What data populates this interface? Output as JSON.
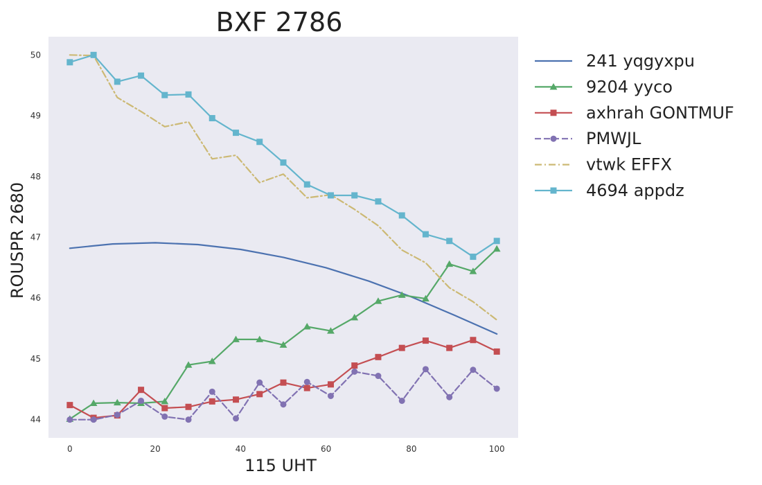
{
  "chart_data": {
    "type": "line",
    "title": "BXF 2786",
    "xlabel": "115 UHT",
    "ylabel": "ROUSPR 2680",
    "xlim": [
      -5,
      105
    ],
    "ylim": [
      43.7,
      50.3
    ],
    "xticks": [
      0,
      20,
      40,
      60,
      80,
      100
    ],
    "yticks": [
      44,
      45,
      46,
      47,
      48,
      49,
      50
    ],
    "grid": false,
    "legend_position": "outside right",
    "series": [
      {
        "name": "241 yqgyxpu",
        "color": "#4c72b0",
        "style": "solid",
        "marker": "none",
        "x": [
          0,
          10,
          20,
          30,
          40,
          50,
          60,
          70,
          80,
          90,
          100
        ],
        "y": [
          46.82,
          46.89,
          46.91,
          46.88,
          46.8,
          46.67,
          46.5,
          46.28,
          46.02,
          45.72,
          45.41
        ]
      },
      {
        "name": "9204 yyco",
        "color": "#55a868",
        "style": "solid",
        "marker": "triangle",
        "x": [
          0,
          5.56,
          11.11,
          16.67,
          22.22,
          27.78,
          33.33,
          38.89,
          44.44,
          50,
          55.56,
          61.11,
          66.67,
          72.22,
          77.78,
          83.33,
          88.89,
          94.44,
          100
        ],
        "y": [
          44.01,
          44.27,
          44.28,
          44.27,
          44.3,
          44.9,
          44.96,
          45.32,
          45.32,
          45.23,
          45.53,
          45.46,
          45.68,
          45.95,
          46.05,
          45.99,
          46.56,
          46.44,
          46.81
        ]
      },
      {
        "name": "axhrah GONTMUF",
        "color": "#c44e52",
        "style": "solid",
        "marker": "square",
        "x": [
          0,
          5.56,
          11.11,
          16.67,
          22.22,
          27.78,
          33.33,
          38.89,
          44.44,
          50,
          55.56,
          61.11,
          66.67,
          72.22,
          77.78,
          83.33,
          88.89,
          94.44,
          100
        ],
        "y": [
          44.24,
          44.03,
          44.07,
          44.49,
          44.19,
          44.21,
          44.3,
          44.33,
          44.42,
          44.61,
          44.52,
          44.58,
          44.89,
          45.03,
          45.18,
          45.3,
          45.18,
          45.31,
          45.12
        ]
      },
      {
        "name": "PMWJL",
        "color": "#8172b2",
        "style": "dashed",
        "marker": "circle",
        "x": [
          0,
          5.56,
          11.11,
          16.67,
          22.22,
          27.78,
          33.33,
          38.89,
          44.44,
          50,
          55.56,
          61.11,
          66.67,
          72.22,
          77.78,
          83.33,
          88.89,
          94.44,
          100
        ],
        "y": [
          44.0,
          44.0,
          44.08,
          44.31,
          44.05,
          44.0,
          44.46,
          44.02,
          44.61,
          44.25,
          44.62,
          44.39,
          44.79,
          44.72,
          44.31,
          44.83,
          44.37,
          44.82,
          44.51
        ]
      },
      {
        "name": "vtwk EFFX",
        "color": "#ccb974",
        "style": "dashdot",
        "marker": "none",
        "x": [
          0,
          5.56,
          11.11,
          16.67,
          22.22,
          27.78,
          33.33,
          38.89,
          44.44,
          50,
          55.56,
          61.11,
          66.67,
          72.22,
          77.78,
          83.33,
          88.89,
          94.44,
          100
        ],
        "y": [
          50.0,
          49.99,
          49.3,
          49.07,
          48.82,
          48.9,
          48.29,
          48.35,
          47.9,
          48.04,
          47.65,
          47.7,
          47.46,
          47.19,
          46.79,
          46.58,
          46.17,
          45.94,
          45.64
        ]
      },
      {
        "name": "4694 appdz",
        "color": "#64b5cd",
        "style": "solid",
        "marker": "square",
        "x": [
          0,
          5.56,
          11.11,
          16.67,
          22.22,
          27.78,
          33.33,
          38.89,
          44.44,
          50,
          55.56,
          61.11,
          66.67,
          72.22,
          77.78,
          83.33,
          88.89,
          94.44,
          100
        ],
        "y": [
          49.88,
          50.0,
          49.56,
          49.66,
          49.34,
          49.35,
          48.96,
          48.72,
          48.57,
          48.23,
          47.87,
          47.69,
          47.69,
          47.59,
          47.36,
          47.05,
          46.94,
          46.68,
          46.94
        ]
      }
    ]
  }
}
